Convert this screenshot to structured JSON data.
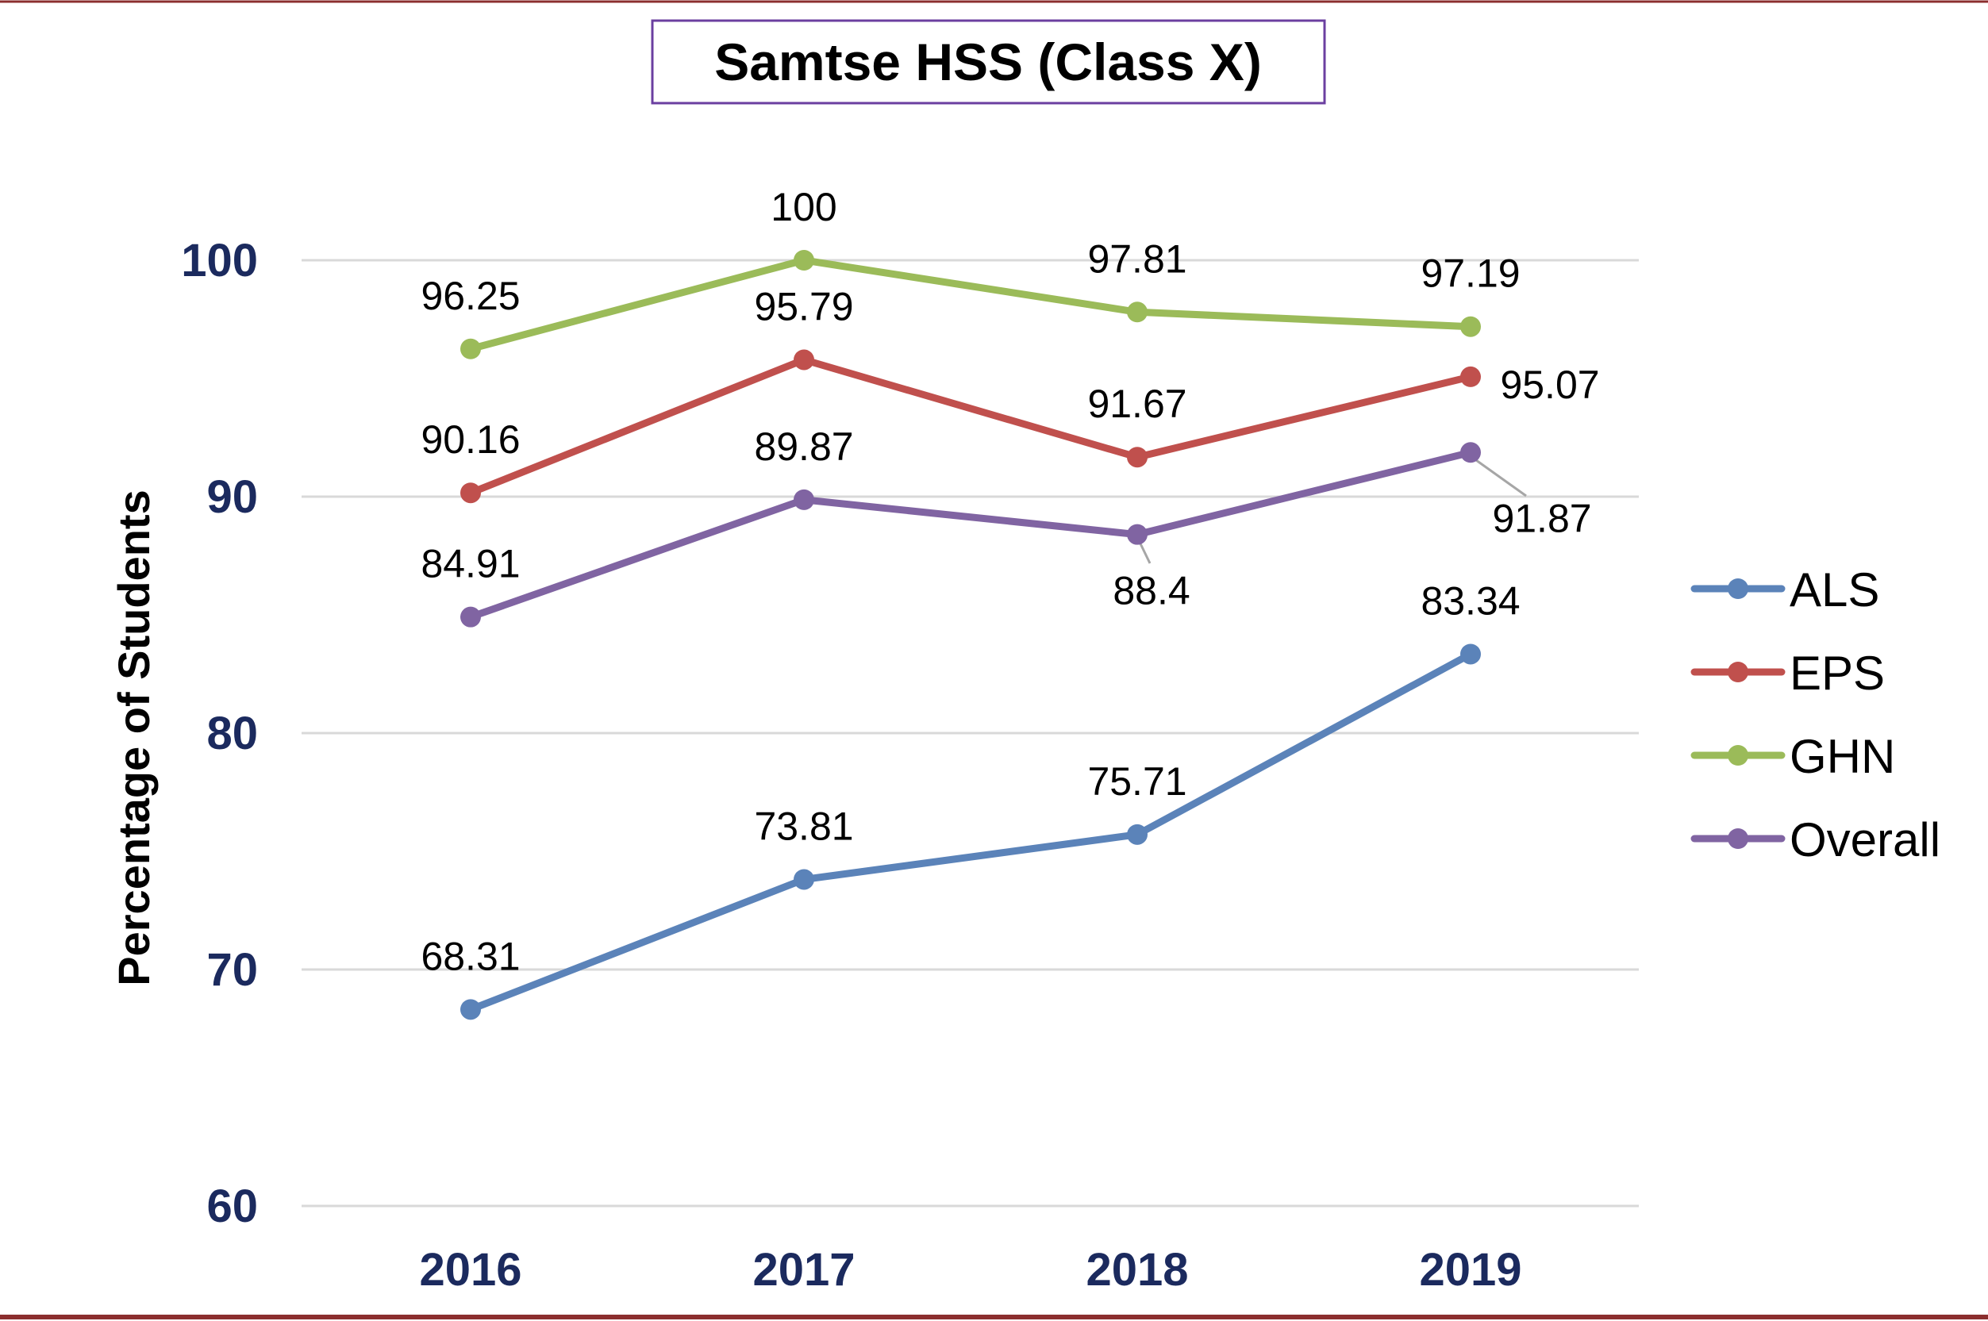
{
  "chart_data": {
    "type": "line",
    "title": "Samtse HSS (Class X)",
    "xlabel": "",
    "ylabel": "Percentage of Students",
    "categories": [
      "2016",
      "2017",
      "2018",
      "2019"
    ],
    "ylim": [
      60,
      100
    ],
    "yticks": [
      60,
      70,
      80,
      90,
      100
    ],
    "grid": true,
    "legend_position": "right",
    "series": [
      {
        "name": "ALS",
        "color": "#5b83b9",
        "values": [
          68.31,
          73.81,
          75.71,
          83.34
        ]
      },
      {
        "name": "EPS",
        "color": "#c0504d",
        "values": [
          90.16,
          95.79,
          91.67,
          95.07
        ]
      },
      {
        "name": "GHN",
        "color": "#9bbb59",
        "values": [
          96.25,
          100,
          97.81,
          97.19
        ]
      },
      {
        "name": "Overall",
        "color": "#8064a2",
        "values": [
          84.91,
          89.87,
          88.4,
          91.87
        ]
      }
    ],
    "data_labels": {
      "ALS": [
        "68.31",
        "73.81",
        "75.71",
        "83.34"
      ],
      "EPS": [
        "90.16",
        "95.79",
        "91.67",
        "95.07"
      ],
      "GHN": [
        "96.25",
        "100",
        "97.81",
        "97.19"
      ],
      "Overall": [
        "84.91",
        "89.87",
        "88.4",
        "91.87"
      ]
    },
    "colors": {
      "axis_text": "#1b2a5e",
      "grid": "#d9d9d9",
      "title_border": "#6b3fa0",
      "bottom_rule": "#8b2e2e",
      "leader": "#a6a6a6"
    }
  }
}
